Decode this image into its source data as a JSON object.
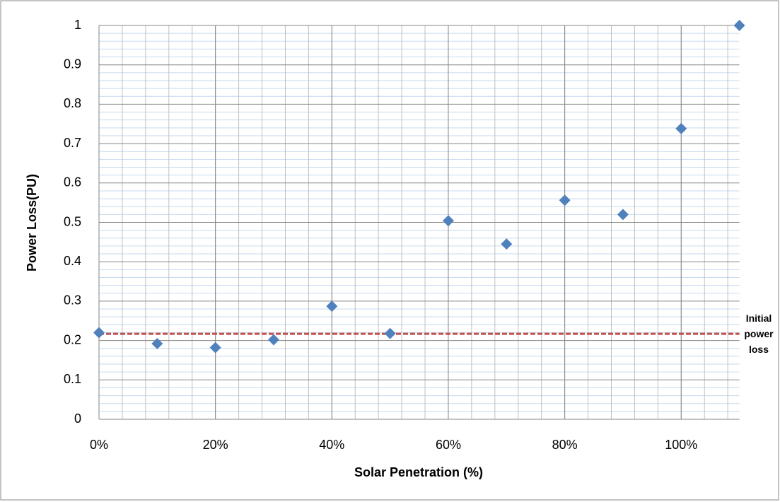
{
  "chart_data": {
    "type": "scatter",
    "x_label": "Solar Penetration (%)",
    "y_label": "Power Loss(PU)",
    "x": [
      0,
      10,
      20,
      30,
      40,
      50,
      60,
      70,
      80,
      90,
      100,
      110
    ],
    "series": [
      {
        "color": "#4f81bd",
        "values": [
          0.22,
          0.192,
          0.182,
          0.202,
          0.287,
          0.218,
          0.504,
          0.445,
          0.556,
          0.52,
          0.738,
          1.0
        ]
      }
    ],
    "xlim": [
      0,
      110
    ],
    "xticks": [
      {
        "value": 0,
        "label": "0%"
      },
      {
        "value": 20,
        "label": "20%"
      },
      {
        "value": 40,
        "label": "40%"
      },
      {
        "value": 60,
        "label": "60%"
      },
      {
        "value": 80,
        "label": "80%"
      },
      {
        "value": 100,
        "label": "100%"
      }
    ],
    "ylim": [
      0,
      1
    ],
    "yticks": [
      0,
      0.1,
      0.2,
      0.3,
      0.4,
      0.5,
      0.6,
      0.7,
      0.8,
      0.9,
      1
    ],
    "grid": true,
    "reference_line": {
      "value": 0.217,
      "label": "Initial power loss",
      "color": "#c0504d"
    }
  }
}
